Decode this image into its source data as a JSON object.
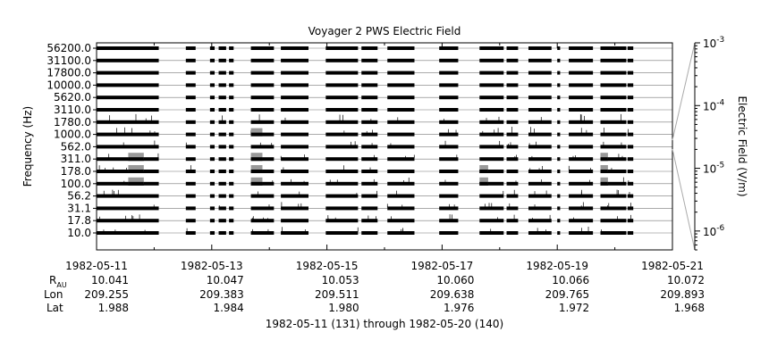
{
  "chart_data": {
    "type": "stacked-strip",
    "title": "Voyager 2 PWS Electric Field",
    "ylabel": "Frequency (Hz)",
    "colorbar_label": "Electric Field (V/m)",
    "colorbar_ticks": [
      {
        "base": "10",
        "exp": "-3",
        "value": 0.001
      },
      {
        "base": "10",
        "exp": "-4",
        "value": 0.0001
      },
      {
        "base": "10",
        "exp": "-5",
        "value": 1e-05
      },
      {
        "base": "10",
        "exp": "-6",
        "value": 1e-06
      }
    ],
    "colorbar_scale": "log",
    "colorbar_range": [
      5e-07,
      0.001
    ],
    "channels": [
      "56200.0",
      "31100.0",
      "17800.0",
      "10000.0",
      "5620.0",
      "3110.0",
      "1780.0",
      "1000.0",
      "562.0",
      "311.0",
      "178.0",
      "100.0",
      "56.2",
      "31.1",
      "17.8",
      "10.0"
    ],
    "x_start": "1982-05-11",
    "x_end": "1982-05-21",
    "xtick_labels": [
      "1982-05-11",
      "1982-05-13",
      "1982-05-15",
      "1982-05-17",
      "1982-05-19",
      "1982-05-21"
    ],
    "xtick_days": [
      0,
      2,
      4,
      6,
      8,
      10
    ],
    "minor_tick_days": [
      1,
      3,
      5,
      7,
      9
    ],
    "ephemeris": {
      "row_labels": {
        "rau_main": "R",
        "rau_sub": "AU",
        "lon": "Lon",
        "lat": "Lat"
      },
      "rau": [
        "10.041",
        "10.047",
        "10.053",
        "10.060",
        "10.066",
        "10.072"
      ],
      "lon": [
        "209.255",
        "209.383",
        "209.511",
        "209.638",
        "209.765",
        "209.893"
      ],
      "lat": [
        "1.988",
        "1.984",
        "1.980",
        "1.976",
        "1.972",
        "1.968"
      ]
    },
    "xlabel": "1982-05-11 (131) through 1982-05-20 (140)",
    "data_intervals_days": [
      [
        0.0,
        1.08
      ],
      [
        1.55,
        1.72
      ],
      [
        1.97,
        2.05
      ],
      [
        2.12,
        2.25
      ],
      [
        2.3,
        2.38
      ],
      [
        2.68,
        3.08
      ],
      [
        3.2,
        3.68
      ],
      [
        3.98,
        4.54
      ],
      [
        4.6,
        4.88
      ],
      [
        5.05,
        5.52
      ],
      [
        5.95,
        6.28
      ],
      [
        6.65,
        7.07
      ],
      [
        7.12,
        7.32
      ],
      [
        7.5,
        7.9
      ],
      [
        8.0,
        8.05
      ],
      [
        8.2,
        8.62
      ],
      [
        8.75,
        9.2
      ],
      [
        9.22,
        9.32
      ]
    ],
    "enhanced_bursts": [
      {
        "day_range": [
          0.55,
          0.82
        ],
        "channels": [
          "311.0",
          "178.0",
          "100.0"
        ]
      },
      {
        "day_range": [
          2.68,
          2.88
        ],
        "channels": [
          "1000.0",
          "311.0",
          "178.0",
          "100.0"
        ]
      },
      {
        "day_range": [
          6.65,
          6.8
        ],
        "channels": [
          "178.0",
          "100.0"
        ]
      },
      {
        "day_range": [
          8.75,
          8.88
        ],
        "channels": [
          "311.0",
          "178.0",
          "100.0"
        ]
      }
    ]
  }
}
